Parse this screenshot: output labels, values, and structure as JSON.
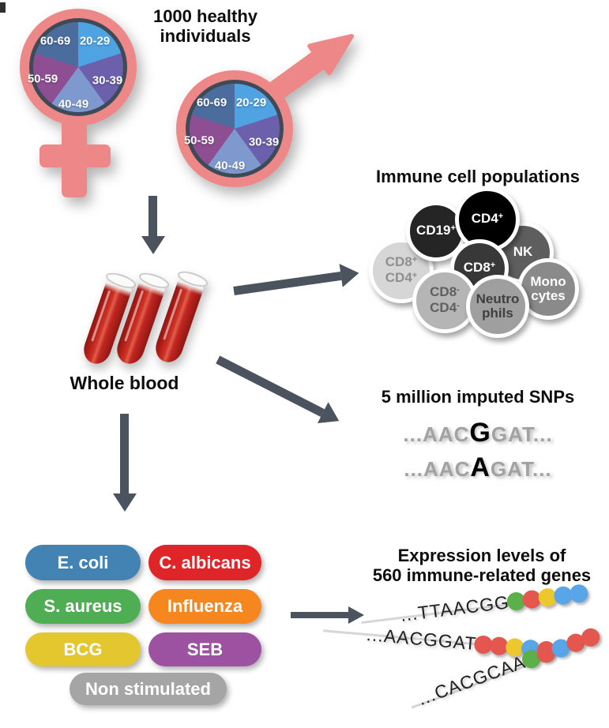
{
  "title": {
    "line1": "1000 healthy",
    "line2": "individuals"
  },
  "demographics": {
    "symbols": [
      "female",
      "male"
    ],
    "symbol_color": "#ee8888",
    "age_groups": [
      "20-29",
      "30-39",
      "40-49",
      "50-59",
      "60-69"
    ],
    "slice_colors": {
      "20-29": "#4fa3e3",
      "30-39": "#6c5fac",
      "40-49": "#7e99ce",
      "50-59": "#8d4e92",
      "60-69": "#4a6d9d"
    }
  },
  "blood": {
    "label": "Whole blood",
    "tube_count": 3,
    "blood_color": "#b61f19"
  },
  "immune_cells": {
    "title": "Immune cell populations",
    "cells": [
      {
        "name": "CD8+CD4+",
        "fill": "#d6d6d6",
        "text": "#8f8f8f",
        "lines": [
          {
            "base": "CD8",
            "sup": "+"
          },
          {
            "base": "CD4",
            "sup": "+"
          }
        ]
      },
      {
        "name": "CD19+",
        "fill": "#252525",
        "text": "#ffffff",
        "lines": [
          {
            "base": "CD19",
            "sup": "+"
          }
        ]
      },
      {
        "name": "NK",
        "fill": "#5e5e5e",
        "text": "#ffffff",
        "lines": [
          {
            "base": "NK",
            "sup": ""
          }
        ]
      },
      {
        "name": "CD4+",
        "fill": "#000000",
        "text": "#ffffff",
        "lines": [
          {
            "base": "CD4",
            "sup": "+"
          }
        ]
      },
      {
        "name": "CD8+",
        "fill": "#383838",
        "text": "#ffffff",
        "lines": [
          {
            "base": "CD8",
            "sup": "+"
          }
        ]
      },
      {
        "name": "Monocytes",
        "fill": "#8a8a8a",
        "text": "#ffffff",
        "lines": [
          {
            "base": "Mono",
            "sup": ""
          },
          {
            "base": "cytes",
            "sup": ""
          }
        ]
      },
      {
        "name": "CD8-CD4-",
        "fill": "#b5b5b5",
        "text": "#5f5f5f",
        "lines": [
          {
            "base": "CD8",
            "sup": "-"
          },
          {
            "base": "CD4",
            "sup": "-"
          }
        ]
      },
      {
        "name": "Neutrophils",
        "fill": "#9f9f9f",
        "text": "#3f3f3f",
        "lines": [
          {
            "base": "Neutro",
            "sup": ""
          },
          {
            "base": "phils",
            "sup": ""
          }
        ]
      }
    ]
  },
  "snps": {
    "title": "5 million imputed SNPs",
    "sequences": [
      {
        "prefix": "...AAC",
        "variant": "G",
        "suffix": "GAT..."
      },
      {
        "prefix": "...AAC",
        "variant": "A",
        "suffix": "GAT..."
      }
    ]
  },
  "stimulations": {
    "items": [
      {
        "label": "E. coli",
        "color": "#4283b4"
      },
      {
        "label": "C. albicans",
        "color": "#e02528"
      },
      {
        "label": "S. aureus",
        "color": "#4fae54"
      },
      {
        "label": "Influenza",
        "color": "#f6871f"
      },
      {
        "label": "BCG",
        "color": "#e4c72f"
      },
      {
        "label": "SEB",
        "color": "#9c51a1"
      },
      {
        "label": "Non stimulated",
        "color": "#a5a5a5"
      }
    ]
  },
  "expression": {
    "title_line1": "Expression levels of",
    "title_line2": "560 immune-related genes",
    "palette": {
      "green": "#5cb04a",
      "red": "#e4574e",
      "yellow": "#edc72e",
      "blue": "#58a5e8"
    },
    "rows": [
      {
        "sequence": "...TTAACGG",
        "dots": [
          "green",
          "red",
          "yellow",
          "blue",
          "blue"
        ]
      },
      {
        "sequence": "...AACGGAT",
        "dots": [
          "red",
          "red",
          "yellow",
          "blue",
          "red"
        ]
      },
      {
        "sequence": "...CACGCAA",
        "dots": [
          "green",
          "red",
          "blue",
          "red",
          "red"
        ]
      }
    ]
  },
  "arrow_color": "#4b535e"
}
